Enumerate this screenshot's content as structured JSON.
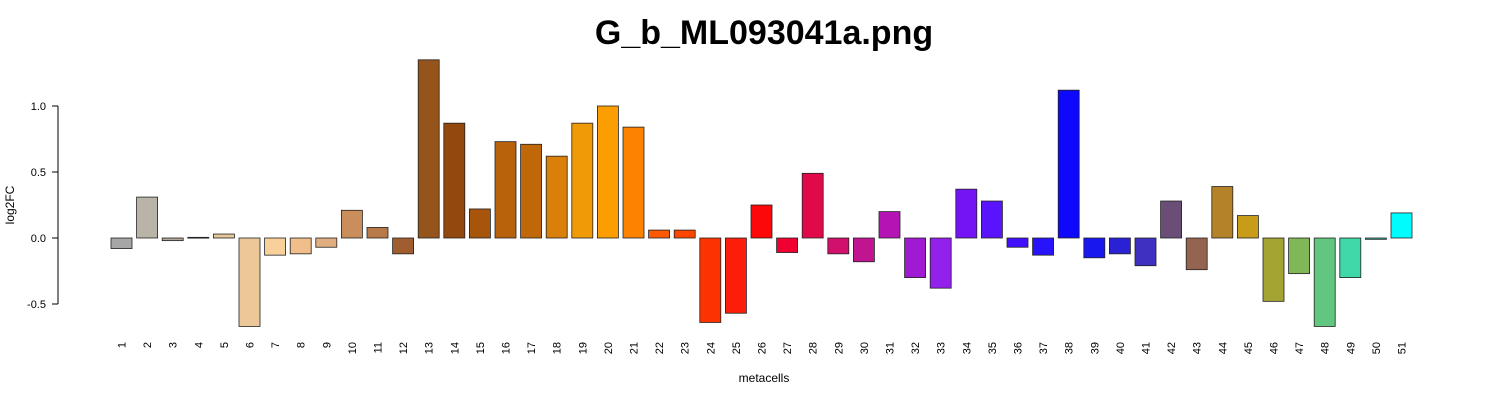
{
  "chart_data": {
    "type": "bar",
    "title": "G_b_ML093041a.png",
    "xlabel": "metacells",
    "ylabel": "log2FC",
    "ylim": [
      -0.7,
      1.38
    ],
    "yticks": [
      -0.5,
      0.0,
      0.5,
      1.0
    ],
    "ytick_labels": [
      "-0.5",
      "0.0",
      "0.5",
      "1.0"
    ],
    "grid": false,
    "categories": [
      "1",
      "2",
      "3",
      "4",
      "5",
      "6",
      "7",
      "8",
      "9",
      "10",
      "11",
      "12",
      "13",
      "14",
      "15",
      "16",
      "17",
      "18",
      "19",
      "20",
      "21",
      "22",
      "23",
      "24",
      "25",
      "26",
      "27",
      "28",
      "29",
      "30",
      "31",
      "32",
      "33",
      "34",
      "35",
      "36",
      "37",
      "38",
      "39",
      "40",
      "41",
      "42",
      "43",
      "44",
      "45",
      "46",
      "47",
      "48",
      "49",
      "50",
      "51"
    ],
    "values": [
      -0.08,
      0.31,
      -0.02,
      0.005,
      0.03,
      -0.67,
      -0.13,
      -0.12,
      -0.07,
      0.21,
      0.08,
      -0.12,
      1.35,
      0.87,
      0.22,
      0.73,
      0.71,
      0.62,
      0.87,
      1.0,
      0.84,
      0.06,
      0.06,
      -0.64,
      -0.57,
      0.25,
      -0.11,
      0.49,
      -0.12,
      -0.18,
      0.2,
      -0.3,
      -0.38,
      0.37,
      0.28,
      -0.07,
      -0.13,
      1.12,
      -0.15,
      -0.12,
      -0.21,
      0.28,
      -0.24,
      0.39,
      0.17,
      -0.48,
      -0.27,
      -0.67,
      -0.3,
      -0.01,
      0.19
    ],
    "colors": [
      "#a6a6a6",
      "#b9b3a8",
      "#b3a89a",
      "#bfb6a8",
      "#e8c79b",
      "#ecc898",
      "#f8d09a",
      "#f0be8a",
      "#e0ae80",
      "#c98e5c",
      "#b87a48",
      "#a05e30",
      "#95541c",
      "#93480e",
      "#a8550c",
      "#b8620c",
      "#c0670a",
      "#da7f08",
      "#f09a08",
      "#fc9e02",
      "#fc8200",
      "#fc5a00",
      "#fc4600",
      "#fc3200",
      "#fc1e0a",
      "#fc0808",
      "#f00030",
      "#e00a4a",
      "#d0106a",
      "#c01490",
      "#b414b4",
      "#a01ad4",
      "#9420ec",
      "#7414f4",
      "#5a14fc",
      "#4010fc",
      "#2814fc",
      "#0e08fc",
      "#1818ee",
      "#2a20d4",
      "#3e30c0",
      "#6a4e78",
      "#946450",
      "#b48228",
      "#c89c18",
      "#a4a432",
      "#80b858",
      "#60c680",
      "#40d8a8",
      "#20c4ae",
      "#00fcfc"
    ]
  }
}
